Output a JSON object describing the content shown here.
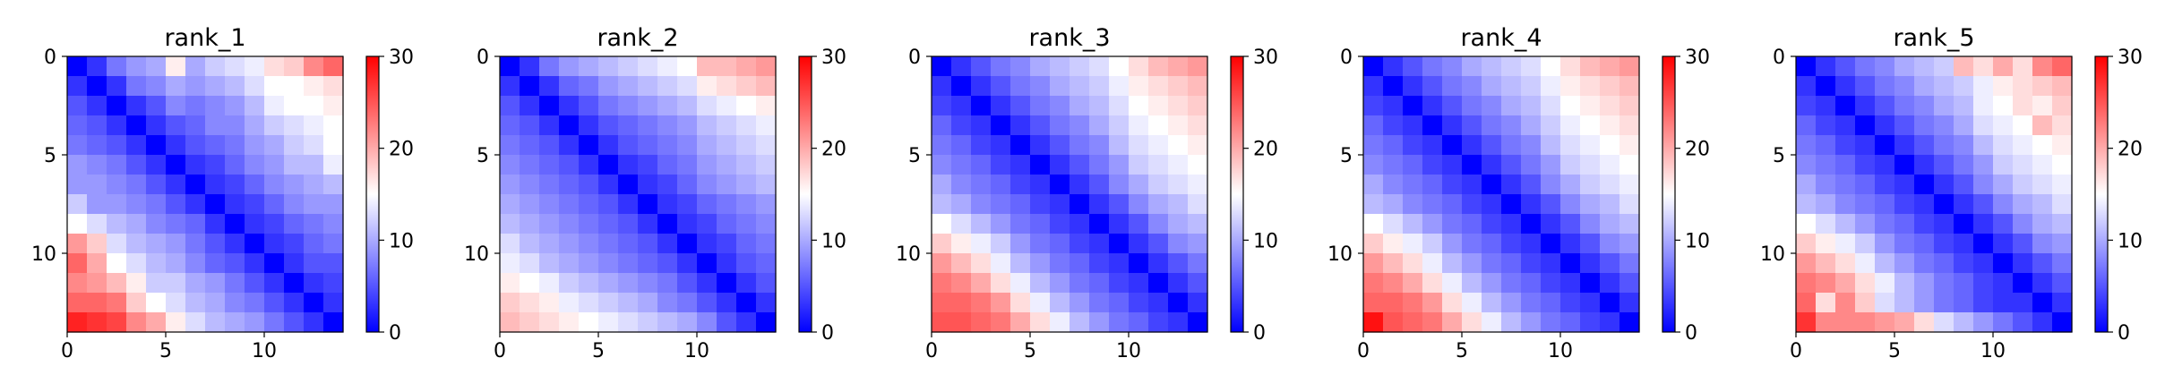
{
  "chart_data": [
    {
      "type": "heatmap",
      "title": "rank_1",
      "x_ticks": [
        0,
        5,
        10
      ],
      "y_ticks": [
        0,
        5,
        10
      ],
      "colorbar": {
        "min": 0,
        "max": 30,
        "ticks": [
          0,
          10,
          20,
          30
        ],
        "colormap": "bwr"
      },
      "matrix": [
        [
          0,
          3,
          7,
          9,
          10,
          16,
          10,
          12,
          13,
          14,
          17,
          18,
          22,
          24
        ],
        [
          3,
          0,
          3,
          7,
          8,
          10,
          9,
          10,
          11,
          13,
          15,
          15,
          16,
          17
        ],
        [
          5,
          3,
          0,
          3,
          5,
          8,
          7,
          8,
          9,
          11,
          14,
          15,
          15,
          16
        ],
        [
          6,
          5,
          3,
          0,
          3,
          5,
          6,
          8,
          8,
          10,
          12,
          13,
          14,
          15
        ],
        [
          7,
          6,
          5,
          3,
          0,
          3,
          5,
          6,
          7,
          9,
          10,
          12,
          13,
          15
        ],
        [
          9,
          8,
          7,
          5,
          3,
          0,
          3,
          4,
          6,
          8,
          9,
          11,
          11,
          14
        ],
        [
          9,
          9,
          8,
          7,
          5,
          3,
          0,
          3,
          4,
          6,
          8,
          9,
          10,
          11
        ],
        [
          12,
          9,
          9,
          8,
          7,
          5,
          3,
          0,
          3,
          4,
          6,
          8,
          9,
          9
        ],
        [
          15,
          13,
          11,
          10,
          8,
          7,
          6,
          3,
          0,
          3,
          4,
          6,
          7,
          8
        ],
        [
          21,
          18,
          13,
          11,
          10,
          9,
          7,
          5,
          3,
          0,
          3,
          4,
          6,
          7
        ],
        [
          24,
          20,
          15,
          13,
          11,
          10,
          8,
          6,
          5,
          3,
          0,
          3,
          5,
          5
        ],
        [
          22,
          21,
          19,
          16,
          12,
          12,
          10,
          9,
          7,
          5,
          3,
          0,
          3,
          4
        ],
        [
          24,
          24,
          23,
          18,
          15,
          13,
          11,
          10,
          8,
          7,
          5,
          3,
          0,
          3
        ],
        [
          28,
          27,
          26,
          22,
          20,
          16,
          13,
          11,
          10,
          9,
          7,
          5,
          3,
          0
        ]
      ]
    },
    {
      "type": "heatmap",
      "title": "rank_2",
      "x_ticks": [
        0,
        5,
        10
      ],
      "y_ticks": [
        0,
        5,
        10
      ],
      "colorbar": {
        "min": 0,
        "max": 30,
        "ticks": [
          0,
          10,
          20,
          30
        ],
        "colormap": "bwr"
      },
      "matrix": [
        [
          0,
          3,
          7,
          9,
          10,
          11,
          12,
          13,
          14,
          15,
          19,
          19,
          20,
          21
        ],
        [
          3,
          0,
          3,
          6,
          7,
          9,
          10,
          11,
          12,
          13,
          16,
          17,
          18,
          19
        ],
        [
          5,
          3,
          0,
          3,
          5,
          7,
          8,
          9,
          10,
          11,
          13,
          14,
          15,
          16
        ],
        [
          6,
          5,
          3,
          0,
          3,
          5,
          6,
          7,
          8,
          9,
          11,
          12,
          13,
          14
        ],
        [
          7,
          6,
          5,
          3,
          0,
          3,
          5,
          6,
          7,
          8,
          10,
          11,
          12,
          13
        ],
        [
          8,
          7,
          6,
          5,
          3,
          0,
          3,
          4,
          6,
          7,
          9,
          10,
          11,
          12
        ],
        [
          9,
          8,
          7,
          6,
          5,
          3,
          0,
          3,
          4,
          6,
          8,
          9,
          10,
          11
        ],
        [
          10,
          9,
          8,
          7,
          6,
          5,
          3,
          0,
          3,
          4,
          6,
          7,
          8,
          9
        ],
        [
          11,
          10,
          9,
          8,
          7,
          6,
          5,
          3,
          0,
          3,
          4,
          6,
          7,
          8
        ],
        [
          13,
          11,
          10,
          9,
          8,
          7,
          6,
          5,
          3,
          0,
          3,
          4,
          6,
          7
        ],
        [
          14,
          13,
          11,
          10,
          9,
          8,
          7,
          6,
          5,
          3,
          0,
          3,
          5,
          6
        ],
        [
          16,
          15,
          14,
          12,
          11,
          10,
          9,
          8,
          7,
          5,
          3,
          0,
          3,
          5
        ],
        [
          18,
          17,
          16,
          14,
          13,
          12,
          11,
          10,
          8,
          7,
          5,
          3,
          0,
          3
        ],
        [
          19,
          18,
          17,
          16,
          15,
          14,
          13,
          12,
          11,
          10,
          8,
          5,
          3,
          0
        ]
      ]
    },
    {
      "type": "heatmap",
      "title": "rank_3",
      "x_ticks": [
        0,
        5,
        10
      ],
      "y_ticks": [
        0,
        5,
        10
      ],
      "colorbar": {
        "min": 0,
        "max": 30,
        "ticks": [
          0,
          10,
          20,
          30
        ],
        "colormap": "bwr"
      },
      "matrix": [
        [
          0,
          3,
          5,
          7,
          8,
          10,
          11,
          12,
          13,
          15,
          17,
          19,
          20,
          21
        ],
        [
          3,
          0,
          3,
          5,
          7,
          8,
          10,
          11,
          12,
          14,
          16,
          17,
          18,
          19
        ],
        [
          4,
          3,
          0,
          3,
          5,
          7,
          8,
          10,
          11,
          13,
          15,
          16,
          17,
          18
        ],
        [
          6,
          4,
          3,
          0,
          3,
          5,
          7,
          8,
          10,
          12,
          14,
          15,
          16,
          17
        ],
        [
          7,
          6,
          4,
          3,
          0,
          3,
          5,
          7,
          8,
          11,
          13,
          14,
          15,
          16
        ],
        [
          8,
          7,
          6,
          4,
          3,
          0,
          3,
          5,
          7,
          9,
          12,
          13,
          14,
          15
        ],
        [
          10,
          8,
          7,
          6,
          4,
          3,
          0,
          3,
          5,
          8,
          10,
          12,
          13,
          14
        ],
        [
          11,
          10,
          8,
          7,
          6,
          4,
          3,
          0,
          3,
          5,
          8,
          10,
          11,
          13
        ],
        [
          15,
          13,
          11,
          9,
          7,
          6,
          4,
          3,
          0,
          3,
          5,
          8,
          10,
          11
        ],
        [
          18,
          16,
          14,
          12,
          9,
          7,
          6,
          4,
          3,
          0,
          3,
          5,
          8,
          9
        ],
        [
          21,
          19,
          17,
          14,
          11,
          9,
          7,
          6,
          4,
          3,
          0,
          3,
          5,
          7
        ],
        [
          23,
          22,
          20,
          17,
          14,
          11,
          9,
          7,
          6,
          4,
          3,
          0,
          3,
          5
        ],
        [
          24,
          24,
          23,
          21,
          17,
          14,
          11,
          9,
          7,
          6,
          4,
          3,
          0,
          3
        ],
        [
          25,
          25,
          24,
          23,
          20,
          17,
          14,
          11,
          9,
          7,
          6,
          4,
          3,
          0
        ]
      ]
    },
    {
      "type": "heatmap",
      "title": "rank_4",
      "x_ticks": [
        0,
        5,
        10
      ],
      "y_ticks": [
        0,
        5,
        10
      ],
      "colorbar": {
        "min": 0,
        "max": 30,
        "ticks": [
          0,
          10,
          20,
          30
        ],
        "colormap": "bwr"
      },
      "matrix": [
        [
          0,
          3,
          5,
          7,
          8,
          10,
          11,
          12,
          13,
          15,
          17,
          19,
          20,
          21
        ],
        [
          3,
          0,
          3,
          5,
          7,
          8,
          10,
          11,
          12,
          14,
          16,
          17,
          18,
          19
        ],
        [
          4,
          3,
          0,
          3,
          5,
          7,
          8,
          10,
          11,
          13,
          15,
          16,
          17,
          18
        ],
        [
          6,
          4,
          3,
          0,
          3,
          5,
          7,
          8,
          10,
          12,
          14,
          15,
          16,
          17
        ],
        [
          7,
          6,
          4,
          3,
          0,
          3,
          5,
          7,
          8,
          11,
          13,
          14,
          15,
          16
        ],
        [
          8,
          7,
          6,
          4,
          3,
          0,
          3,
          5,
          7,
          9,
          12,
          13,
          14,
          15
        ],
        [
          10,
          8,
          7,
          6,
          4,
          3,
          0,
          3,
          5,
          8,
          10,
          12,
          13,
          14
        ],
        [
          11,
          10,
          8,
          7,
          6,
          4,
          3,
          0,
          3,
          5,
          8,
          10,
          11,
          13
        ],
        [
          15,
          13,
          11,
          9,
          7,
          6,
          4,
          3,
          0,
          3,
          5,
          8,
          10,
          11
        ],
        [
          18,
          16,
          14,
          12,
          9,
          7,
          6,
          4,
          3,
          0,
          3,
          5,
          8,
          9
        ],
        [
          21,
          19,
          17,
          14,
          11,
          9,
          7,
          6,
          4,
          3,
          0,
          3,
          5,
          7
        ],
        [
          23,
          22,
          20,
          17,
          14,
          11,
          9,
          7,
          6,
          4,
          3,
          0,
          3,
          5
        ],
        [
          24,
          24,
          23,
          21,
          17,
          14,
          11,
          9,
          7,
          6,
          4,
          3,
          0,
          3
        ],
        [
          29,
          25,
          24,
          23,
          20,
          17,
          14,
          11,
          9,
          7,
          6,
          4,
          3,
          0
        ]
      ]
    },
    {
      "type": "heatmap",
      "title": "rank_5",
      "x_ticks": [
        0,
        5,
        10
      ],
      "y_ticks": [
        0,
        5,
        10
      ],
      "colorbar": {
        "min": 0,
        "max": 30,
        "ticks": [
          0,
          10,
          20,
          30
        ],
        "colormap": "bwr"
      },
      "matrix": [
        [
          0,
          3,
          5,
          7,
          8,
          10,
          11,
          12,
          19,
          17,
          20,
          17,
          22,
          24
        ],
        [
          3,
          0,
          3,
          5,
          7,
          8,
          10,
          11,
          12,
          14,
          16,
          17,
          18,
          19
        ],
        [
          4,
          3,
          0,
          3,
          5,
          7,
          8,
          10,
          11,
          14,
          15,
          17,
          16,
          18
        ],
        [
          6,
          4,
          3,
          0,
          3,
          5,
          7,
          8,
          10,
          13,
          14,
          15,
          19,
          17
        ],
        [
          7,
          6,
          4,
          3,
          0,
          3,
          5,
          7,
          8,
          11,
          13,
          14,
          15,
          16
        ],
        [
          8,
          7,
          6,
          4,
          3,
          0,
          3,
          5,
          7,
          9,
          12,
          13,
          14,
          15
        ],
        [
          10,
          8,
          7,
          6,
          4,
          3,
          0,
          3,
          5,
          8,
          10,
          12,
          13,
          14
        ],
        [
          11,
          10,
          8,
          7,
          6,
          4,
          3,
          0,
          3,
          5,
          8,
          10,
          11,
          13
        ],
        [
          15,
          13,
          11,
          9,
          7,
          6,
          4,
          3,
          0,
          3,
          5,
          8,
          10,
          11
        ],
        [
          18,
          16,
          14,
          12,
          9,
          7,
          6,
          4,
          3,
          0,
          3,
          5,
          8,
          9
        ],
        [
          21,
          19,
          17,
          14,
          11,
          9,
          7,
          6,
          4,
          3,
          0,
          3,
          5,
          7
        ],
        [
          23,
          22,
          20,
          17,
          14,
          11,
          9,
          7,
          6,
          4,
          3,
          0,
          3,
          5
        ],
        [
          24,
          17,
          22,
          18,
          13,
          11,
          9,
          7,
          6,
          4,
          3,
          3,
          0,
          3
        ],
        [
          27,
          22,
          22,
          22,
          21,
          20,
          17,
          13,
          11,
          9,
          7,
          5,
          3,
          0
        ]
      ]
    }
  ]
}
